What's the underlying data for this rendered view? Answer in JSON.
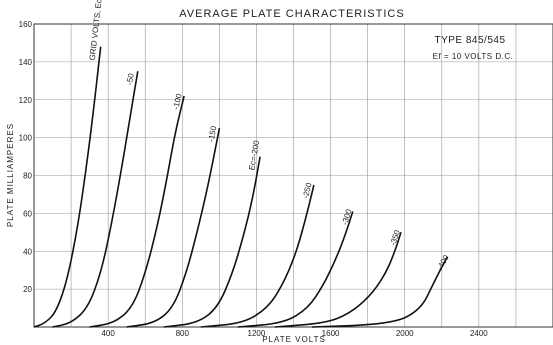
{
  "chart_data": {
    "type": "line",
    "title": "AVERAGE PLATE CHARACTERISTICS",
    "xlabel": "PLATE VOLTS",
    "ylabel": "PLATE MILLIAMPERES",
    "xlim": [
      0,
      2800
    ],
    "ylim": [
      0,
      160
    ],
    "xticks": [
      "400",
      "800",
      "1200",
      "1600",
      "2000",
      "2400"
    ],
    "yticks": [
      "20",
      "40",
      "60",
      "80",
      "100",
      "120",
      "140",
      "160"
    ],
    "grid": true,
    "annotations": [
      "TYPE 845/545",
      "Ef = 10 VOLTS D.C."
    ],
    "series": [
      {
        "name": "GRID VOLTS, Ec=0",
        "points": [
          [
            0,
            0
          ],
          [
            60,
            2
          ],
          [
            120,
            8
          ],
          [
            180,
            25
          ],
          [
            240,
            55
          ],
          [
            290,
            90
          ],
          [
            330,
            122
          ],
          [
            360,
            148
          ]
        ]
      },
      {
        "name": "-50",
        "points": [
          [
            100,
            0
          ],
          [
            200,
            2
          ],
          [
            290,
            10
          ],
          [
            360,
            28
          ],
          [
            420,
            55
          ],
          [
            480,
            88
          ],
          [
            520,
            112
          ],
          [
            560,
            135
          ]
        ]
      },
      {
        "name": "-100",
        "points": [
          [
            300,
            0
          ],
          [
            430,
            2
          ],
          [
            530,
            10
          ],
          [
            600,
            28
          ],
          [
            670,
            55
          ],
          [
            720,
            80
          ],
          [
            760,
            102
          ],
          [
            810,
            122
          ]
        ]
      },
      {
        "name": "-150",
        "points": [
          [
            500,
            0
          ],
          [
            650,
            2
          ],
          [
            750,
            10
          ],
          [
            820,
            28
          ],
          [
            880,
            50
          ],
          [
            940,
            75
          ],
          [
            1000,
            105
          ]
        ]
      },
      {
        "name": "Ec=-200",
        "points": [
          [
            700,
            0
          ],
          [
            880,
            2
          ],
          [
            990,
            10
          ],
          [
            1070,
            28
          ],
          [
            1130,
            48
          ],
          [
            1180,
            68
          ],
          [
            1220,
            90
          ]
        ]
      },
      {
        "name": "-250",
        "points": [
          [
            900,
            0
          ],
          [
            1130,
            2
          ],
          [
            1260,
            10
          ],
          [
            1340,
            22
          ],
          [
            1410,
            38
          ],
          [
            1460,
            55
          ],
          [
            1510,
            75
          ]
        ]
      },
      {
        "name": "-300",
        "points": [
          [
            1100,
            0
          ],
          [
            1350,
            2
          ],
          [
            1480,
            10
          ],
          [
            1560,
            22
          ],
          [
            1620,
            34
          ],
          [
            1670,
            46
          ],
          [
            1720,
            61
          ]
        ]
      },
      {
        "name": "-350",
        "points": [
          [
            1300,
            0
          ],
          [
            1570,
            2
          ],
          [
            1700,
            7
          ],
          [
            1810,
            16
          ],
          [
            1890,
            27
          ],
          [
            1940,
            38
          ],
          [
            1980,
            50
          ]
        ]
      },
      {
        "name": "-400",
        "points": [
          [
            1500,
            0
          ],
          [
            1800,
            1
          ],
          [
            1950,
            3
          ],
          [
            2030,
            6
          ],
          [
            2100,
            12
          ],
          [
            2140,
            20
          ],
          [
            2180,
            28
          ],
          [
            2230,
            37
          ]
        ]
      }
    ]
  }
}
